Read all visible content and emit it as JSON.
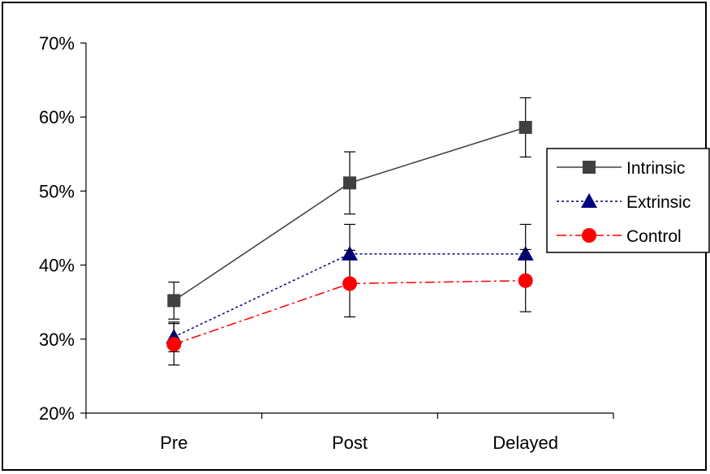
{
  "chart_data": {
    "type": "line",
    "categories": [
      "Pre",
      "Post",
      "Delayed"
    ],
    "ylim": [
      0.2,
      0.7
    ],
    "yticks": [
      0.2,
      0.3,
      0.4,
      0.5,
      0.6,
      0.7
    ],
    "ytick_labels": [
      "20%",
      "30%",
      "40%",
      "50%",
      "60%",
      "70%"
    ],
    "grid": false,
    "legend_position": "right",
    "series": [
      {
        "name": "Intrinsic",
        "values": [
          0.352,
          0.511,
          0.586
        ],
        "error": [
          0.025,
          0.042,
          0.04
        ],
        "color": "#404040",
        "marker": "square",
        "line_style": "solid"
      },
      {
        "name": "Extrinsic",
        "values": [
          0.303,
          0.415,
          0.415
        ],
        "error": [
          0.02,
          0.04,
          0.04
        ],
        "color": "#000080",
        "marker": "triangle",
        "line_style": "dotted"
      },
      {
        "name": "Control",
        "values": [
          0.293,
          0.375,
          0.379
        ],
        "error": [
          0.028,
          0.045,
          0.042
        ],
        "color": "#ff0000",
        "marker": "circle",
        "line_style": "dash-dot"
      }
    ]
  }
}
